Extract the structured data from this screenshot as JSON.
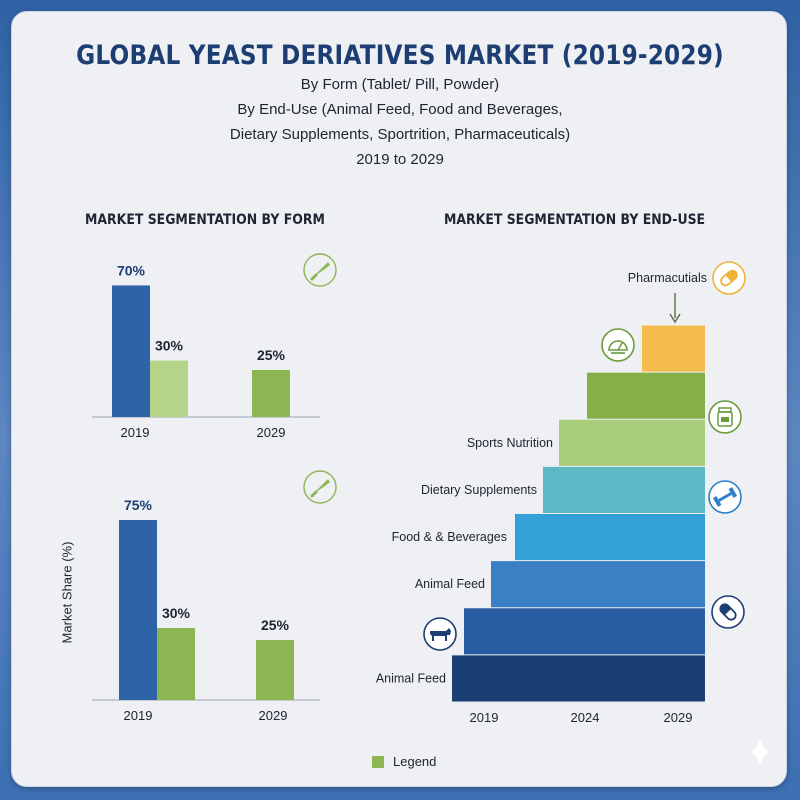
{
  "header": {
    "title": "GLOBAL YEAST DERIATIVES MARKET (2019-2029)",
    "subtitle_lines": [
      "By Form (Tablet/ Pill, Powder)",
      "By End-Use (Animal Feed, Food and Beverages,",
      "Dietary Supplements, Sportrition, Pharmaceuticals)",
      "2019 to 2029"
    ]
  },
  "sections": {
    "form_title": "MARKET SEGMENTATION BY FORM",
    "enduse_title": "MARKET SEGMENTATION BY END-USE"
  },
  "y_axis_label": "Market Share (%)",
  "legend": {
    "label": "Legend",
    "color": "#8db552"
  },
  "icons": [
    "scoop-icon",
    "scoop-icon",
    "pill-icon",
    "scale-icon",
    "jar-icon",
    "dumbbell-icon",
    "capsule-icon",
    "cow-icon"
  ],
  "chart_data": [
    {
      "type": "bar",
      "title": "MARKET SEGMENTATION BY FORM",
      "categories": [
        "2019",
        "2029"
      ],
      "series": [
        {
          "values": [
            70,
            null
          ],
          "labels": [
            "70%",
            ""
          ],
          "color": "#2f63a8",
          "label_color": "#1d3e73"
        },
        {
          "values": [
            30,
            25
          ],
          "labels": [
            "30%",
            "25%"
          ],
          "color": [
            "#b4d48a",
            "#8db552"
          ],
          "label_color": "#1e2430"
        }
      ],
      "ylim": [
        0,
        100
      ]
    },
    {
      "type": "bar",
      "categories": [
        "2019",
        "2029"
      ],
      "series": [
        {
          "values": [
            75,
            null
          ],
          "labels": [
            "75%",
            ""
          ],
          "color": "#2f63a8",
          "label_color": "#1d3e73"
        },
        {
          "values": [
            30,
            25
          ],
          "labels": [
            "30%",
            "25%"
          ],
          "color": "#8db552",
          "label_color": "#1e2430"
        }
      ],
      "ylabel": "Market Share (%)",
      "ylim": [
        0,
        100
      ]
    },
    {
      "type": "bar",
      "orientation": "horizontal",
      "title": "MARKET SEGMENTATION BY END-USE",
      "x_ticks": [
        "2019",
        "2024",
        "2029"
      ],
      "layers": [
        {
          "label": "Animal Feed",
          "color": "#1b3f72"
        },
        {
          "label": "",
          "color": "#2a5ea3"
        },
        {
          "label": "Animal Feed",
          "color": "#3b80c5"
        },
        {
          "label": "Food & & Beverages",
          "color": "#33a0d8"
        },
        {
          "label": "Dietary Supplements",
          "color": "#5db8c6"
        },
        {
          "label": "Sports Nutrition",
          "color": "#a8cd7a"
        },
        {
          "label": "",
          "color": "#85b049"
        },
        {
          "label": "",
          "color": "#f4bc4c"
        }
      ],
      "top_annotation": "Pharmacutials"
    }
  ]
}
